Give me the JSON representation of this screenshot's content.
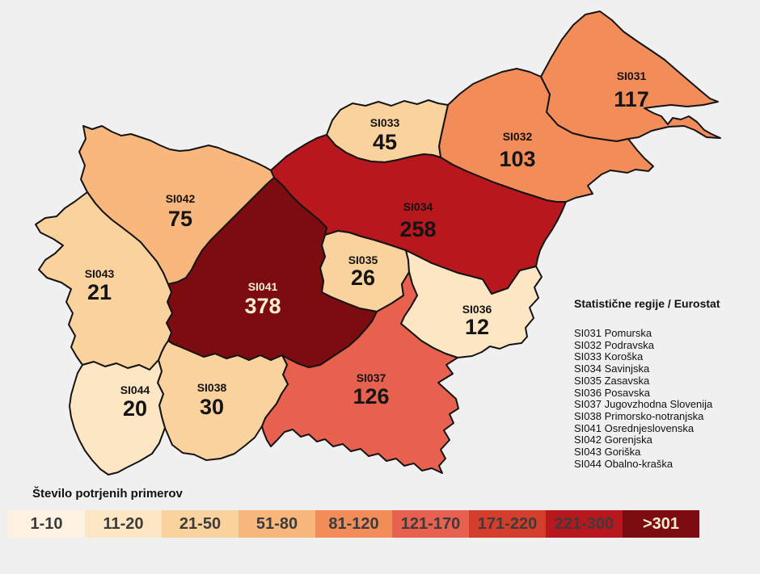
{
  "canvas": {
    "background": "#f0f0f1",
    "border_color": "#141414"
  },
  "map": {
    "regions": [
      {
        "code": "SI031",
        "name": "Pomurska",
        "value": "117",
        "bucket": "81-120",
        "label_color": "#141414"
      },
      {
        "code": "SI032",
        "name": "Podravska",
        "value": "103",
        "bucket": "81-120",
        "label_color": "#141414"
      },
      {
        "code": "SI033",
        "name": "Koroška",
        "value": "45",
        "bucket": "21-50",
        "label_color": "#141414"
      },
      {
        "code": "SI034",
        "name": "Savinjska",
        "value": "258",
        "bucket": "221-300",
        "label_color": "#141414"
      },
      {
        "code": "SI035",
        "name": "Zasavska",
        "value": "26",
        "bucket": "21-50",
        "label_color": "#141414"
      },
      {
        "code": "SI036",
        "name": "Posavska",
        "value": "12",
        "bucket": "11-20",
        "label_color": "#141414"
      },
      {
        "code": "SI037",
        "name": "Jugovzhodna Slovenija",
        "value": "126",
        "bucket": "121-170",
        "label_color": "#141414"
      },
      {
        "code": "SI038",
        "name": "Primorsko-notranjska",
        "value": "30",
        "bucket": "21-50",
        "label_color": "#141414"
      },
      {
        "code": "SI041",
        "name": "Osrednjeslovenska",
        "value": "378",
        "bucket": ">301",
        "label_color": "#F7EDCF"
      },
      {
        "code": "SI042",
        "name": "Gorenjska",
        "value": "75",
        "bucket": "51-80",
        "label_color": "#141414"
      },
      {
        "code": "SI043",
        "name": "Goriška",
        "value": "21",
        "bucket": "21-50",
        "label_color": "#141414"
      },
      {
        "code": "SI044",
        "name": "Obalno-kraška",
        "value": "20",
        "bucket": "11-20",
        "label_color": "#141414"
      }
    ]
  },
  "side_panel": {
    "title": "Statistične regije / Eurostat"
  },
  "legend": {
    "title": "Število potrjenih primerov",
    "buckets": [
      {
        "label": "1-10",
        "color": "#FDF2E1",
        "text_color": "#3C3C3C"
      },
      {
        "label": "11-20",
        "color": "#FCE6C3",
        "text_color": "#3C3C3C"
      },
      {
        "label": "21-50",
        "color": "#FAD29E",
        "text_color": "#3C3C3C"
      },
      {
        "label": "51-80",
        "color": "#F8B77C",
        "text_color": "#3C3C3C"
      },
      {
        "label": "81-120",
        "color": "#F28D5A",
        "text_color": "#3C3C3C"
      },
      {
        "label": "121-170",
        "color": "#E8614E",
        "text_color": "#3C3C3C"
      },
      {
        "label": "171-220",
        "color": "#D43C2C",
        "text_color": "#3C3C3C"
      },
      {
        "label": "221-300",
        "color": "#B8171D",
        "text_color": "#3C3C3C"
      },
      {
        "label": ">301",
        "color": "#7D0C10",
        "text_color": "#F7EDCF"
      }
    ]
  }
}
